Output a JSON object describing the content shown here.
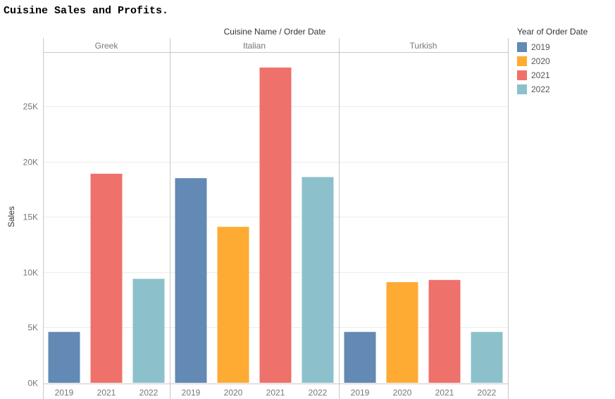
{
  "title": "Cuisine Sales and Profits.",
  "header_label": "Cuisine Name / Order Date",
  "legend": {
    "title": "Year of Order Date",
    "items": [
      {
        "label": "2019",
        "color": "#6389b5"
      },
      {
        "label": "2020",
        "color": "#fdab33"
      },
      {
        "label": "2021",
        "color": "#ef716b"
      },
      {
        "label": "2022",
        "color": "#8cc1cb"
      }
    ]
  },
  "chart_data": {
    "type": "bar",
    "ylabel": "Sales",
    "ylim": [
      0,
      29000
    ],
    "yticks": [
      0,
      5000,
      10000,
      15000,
      20000,
      25000
    ],
    "ytick_labels": [
      "0K",
      "5K",
      "10K",
      "15K",
      "20K",
      "25K"
    ],
    "grid": true,
    "panels": [
      {
        "name": "Greek",
        "categories": [
          "2019",
          "2021",
          "2022"
        ],
        "values": [
          4600,
          18900,
          9400
        ]
      },
      {
        "name": "Italian",
        "categories": [
          "2019",
          "2020",
          "2021",
          "2022"
        ],
        "values": [
          18500,
          14100,
          28500,
          18600
        ]
      },
      {
        "name": "Turkish",
        "categories": [
          "2019",
          "2020",
          "2021",
          "2022"
        ],
        "values": [
          4600,
          9100,
          9300,
          4600
        ]
      }
    ]
  }
}
